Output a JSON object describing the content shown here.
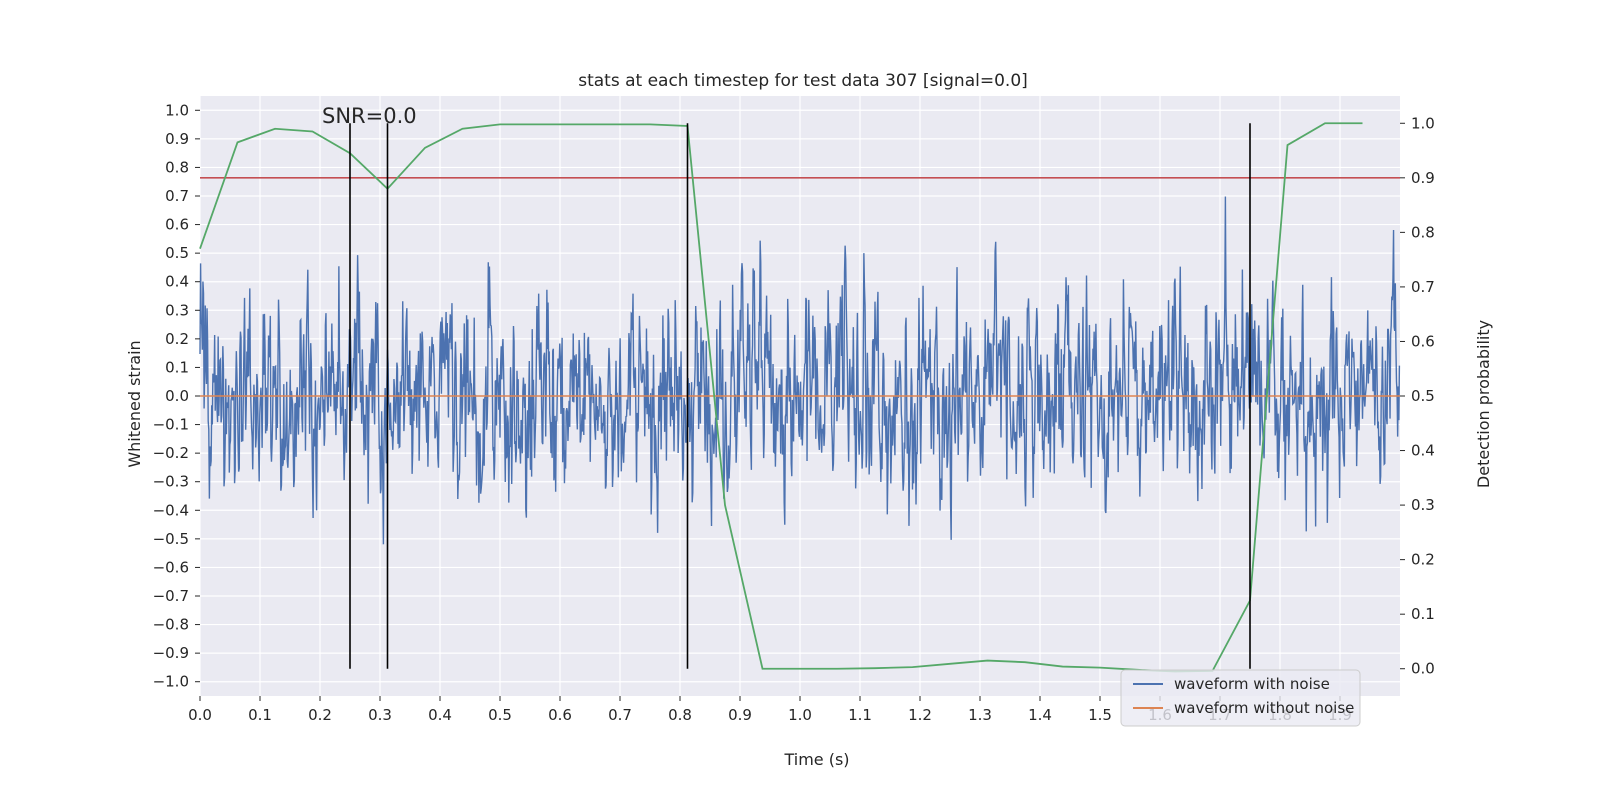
{
  "chart_data": {
    "type": "line",
    "title": "stats at each timestep for test data 307 [signal=0.0]",
    "xlabel": "Time (s)",
    "ylabel_left": "Whitened strain",
    "ylabel_right": "Detection probability",
    "xlim": [
      0.0,
      2.0
    ],
    "ylim_left": [
      -1.05,
      1.05
    ],
    "ylim_right": [
      -0.05,
      1.05
    ],
    "x_ticks": [
      "0.0",
      "0.1",
      "0.2",
      "0.3",
      "0.4",
      "0.5",
      "0.6",
      "0.7",
      "0.8",
      "0.9",
      "1.0",
      "1.1",
      "1.2",
      "1.3",
      "1.4",
      "1.5",
      "1.6",
      "1.7",
      "1.8",
      "1.9"
    ],
    "y_ticks_left": [
      "1.0",
      "0.9",
      "0.8",
      "0.7",
      "0.6",
      "0.5",
      "0.4",
      "0.3",
      "0.2",
      "0.1",
      "0.0",
      "−0.1",
      "−0.2",
      "−0.3",
      "−0.4",
      "−0.5",
      "−0.6",
      "−0.7",
      "−0.8",
      "−0.9",
      "−1.0"
    ],
    "y_ticks_right": [
      "1.0",
      "0.9",
      "0.8",
      "0.7",
      "0.6",
      "0.5",
      "0.4",
      "0.3",
      "0.2",
      "0.1",
      "0.0"
    ],
    "annotation": "SNR=0.0",
    "series": [
      {
        "name": "waveform with noise",
        "color": "#4c72b0",
        "axis": "left",
        "kind": "noise",
        "amplitude_std": 0.2,
        "samples": 2048
      },
      {
        "name": "waveform without noise",
        "color": "#dd8452",
        "axis": "left",
        "values_constant": 0.0
      },
      {
        "name": "detection probability",
        "color": "#55a868",
        "axis": "right",
        "x": [
          0.0,
          0.0625,
          0.125,
          0.1875,
          0.25,
          0.3125,
          0.375,
          0.4375,
          0.5,
          0.5625,
          0.625,
          0.6875,
          0.75,
          0.8125,
          0.875,
          0.9375,
          1.0,
          1.0625,
          1.125,
          1.1875,
          1.25,
          1.3125,
          1.375,
          1.4375,
          1.5,
          1.5625,
          1.625,
          1.6875,
          1.75,
          1.8125,
          1.875,
          1.9375
        ],
        "values": [
          0.77,
          0.965,
          0.99,
          0.985,
          0.945,
          0.88,
          0.955,
          0.99,
          0.998,
          0.998,
          0.998,
          0.998,
          0.998,
          0.995,
          0.3,
          0.0,
          0.0,
          0.0,
          0.001,
          0.003,
          0.009,
          0.015,
          0.012,
          0.004,
          0.002,
          -0.002,
          -0.005,
          -0.004,
          0.125,
          0.96,
          1.0,
          1.0
        ]
      }
    ],
    "threshold": {
      "value": 0.9,
      "axis": "right",
      "color": "#c44e52"
    },
    "vlines": [
      0.25,
      0.3125,
      0.8125,
      1.75
    ],
    "vline_color": "#000000",
    "legend": {
      "position": "lower-right",
      "entries": [
        "waveform with noise",
        "waveform without noise"
      ]
    }
  },
  "colors": {
    "plot_bg": "#eaeaf2",
    "grid": "#ffffff",
    "noise": "#4c72b0",
    "clean": "#dd8452",
    "prob": "#55a868",
    "threshold": "#c44e52"
  }
}
